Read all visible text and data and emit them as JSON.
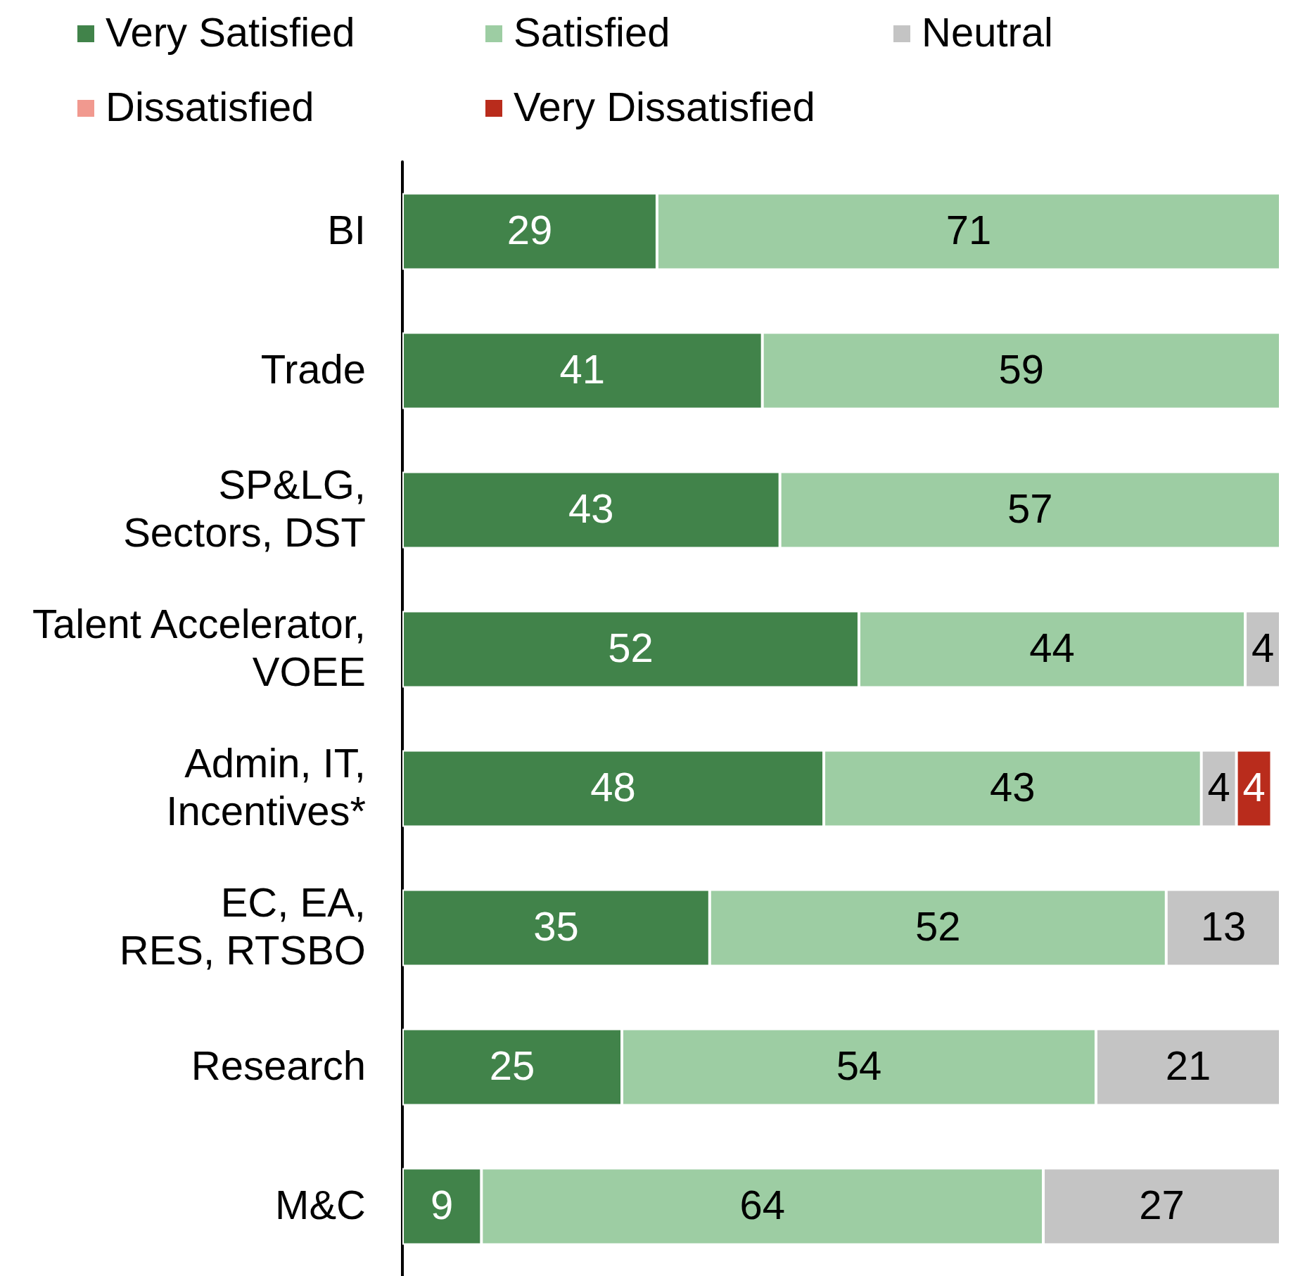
{
  "chart_data": {
    "type": "bar",
    "orientation": "horizontal",
    "stacked": true,
    "categories": [
      "BI",
      "Trade",
      "SP&LG, Sectors, DST",
      "Talent Accelerator, VOEE",
      "Admin, IT, Incentives*",
      "EC, EA, RES, RTSBO",
      "Research",
      "M&C"
    ],
    "series": [
      {
        "name": "Very Satisfied",
        "color": "#41834a",
        "values": [
          29,
          41,
          43,
          52,
          48,
          35,
          25,
          9
        ]
      },
      {
        "name": "Satisfied",
        "color": "#9dcda3",
        "values": [
          71,
          59,
          57,
          44,
          43,
          52,
          54,
          64
        ]
      },
      {
        "name": "Neutral",
        "color": "#c4c4c4",
        "values": [
          null,
          null,
          null,
          4,
          4,
          13,
          21,
          27
        ]
      },
      {
        "name": "Dissatisfied",
        "color": "#f1998f",
        "values": [
          null,
          null,
          null,
          null,
          null,
          null,
          null,
          null
        ]
      },
      {
        "name": "Very Dissatisfied",
        "color": "#b92c1c",
        "values": [
          null,
          null,
          null,
          null,
          4,
          null,
          null,
          null
        ]
      }
    ],
    "xlim": [
      0,
      100
    ],
    "data_labels": true,
    "legend": "top",
    "grid": false,
    "tick_labels": "y"
  }
}
